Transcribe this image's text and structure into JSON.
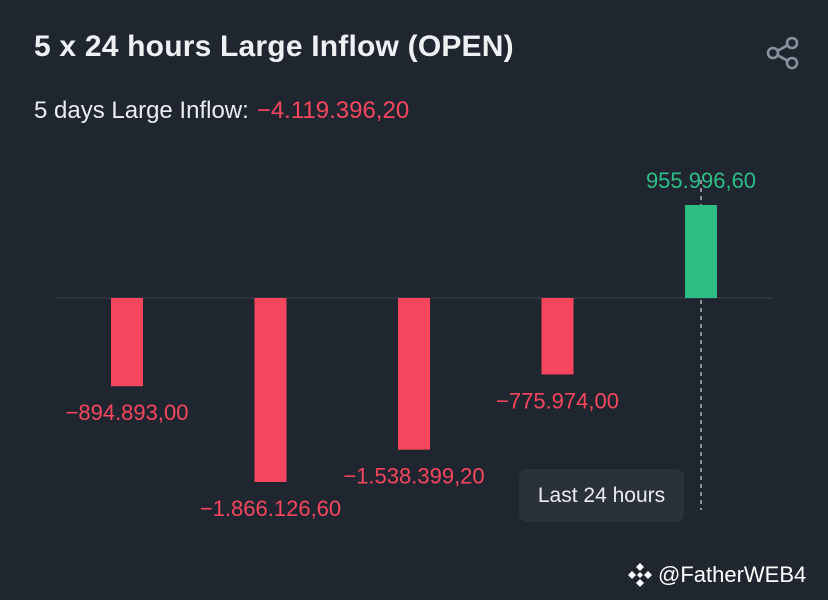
{
  "header": {
    "title": "5 x 24 hours Large Inflow (OPEN)",
    "share_icon": "share-icon"
  },
  "summary": {
    "label": "5 days Large Inflow:",
    "value": "−4.119.396,20",
    "value_color": "#f6465d"
  },
  "colors": {
    "negative": "#f6465d",
    "positive": "#2ebd85",
    "baseline": "#3b424d"
  },
  "chart_data": {
    "type": "bar",
    "categories": [
      "",
      "",
      "",
      "",
      ""
    ],
    "values": [
      -894893.0,
      -1866126.6,
      -1538399.2,
      -775974.0,
      955996.6
    ],
    "labels": [
      "−894.893,00",
      "−1.866.126,60",
      "−1.538.399,20",
      "−775.974,00",
      "955.996,60"
    ],
    "title": "",
    "xlabel": "",
    "ylabel": "",
    "ylim": [
      -1866126.6,
      955996.6
    ],
    "grid": false,
    "legend": "none",
    "annotation": "Last 24 hours"
  },
  "tooltip": {
    "label": "Last 24 hours"
  },
  "watermark": {
    "text": "@FatherWEB4",
    "icon": "binance-logo-icon"
  }
}
